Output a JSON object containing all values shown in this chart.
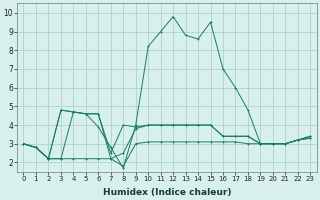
{
  "xlabel": "Humidex (Indice chaleur)",
  "x": [
    0,
    1,
    2,
    3,
    4,
    5,
    6,
    7,
    8,
    9,
    10,
    11,
    12,
    13,
    14,
    15,
    16,
    17,
    18,
    19,
    20,
    21,
    22,
    23
  ],
  "line1": [
    3.0,
    2.8,
    2.2,
    2.2,
    2.2,
    2.2,
    2.2,
    2.2,
    1.8,
    3.0,
    3.1,
    3.1,
    3.1,
    3.1,
    3.1,
    3.1,
    3.1,
    3.1,
    3.0,
    3.0,
    3.0,
    3.0,
    3.2,
    3.3
  ],
  "line2": [
    3.0,
    2.8,
    2.2,
    4.8,
    4.7,
    4.6,
    4.6,
    2.2,
    2.5,
    3.8,
    4.0,
    4.0,
    4.0,
    4.0,
    4.0,
    4.0,
    3.4,
    3.4,
    3.4,
    3.0,
    3.0,
    3.0,
    3.2,
    3.4
  ],
  "line3": [
    3.0,
    2.8,
    2.2,
    4.8,
    4.7,
    4.6,
    3.9,
    2.8,
    1.7,
    4.0,
    8.2,
    9.0,
    9.8,
    8.8,
    8.6,
    9.5,
    7.0,
    6.0,
    4.8,
    3.0,
    3.0,
    3.0,
    3.2,
    3.4
  ],
  "line4": [
    3.0,
    2.8,
    2.2,
    2.2,
    4.7,
    4.6,
    4.6,
    2.5,
    4.0,
    3.9,
    4.0,
    4.0,
    4.0,
    4.0,
    4.0,
    4.0,
    3.4,
    3.4,
    3.4,
    3.0,
    3.0,
    3.0,
    3.2,
    3.3
  ],
  "color": "#1a7a6a",
  "bg_color": "#d8f0eb",
  "grid_color": "#a8ccc8",
  "ylim": [
    1.5,
    10.5
  ],
  "xlim": [
    -0.5,
    23.5
  ],
  "yticks": [
    2,
    3,
    4,
    5,
    6,
    7,
    8,
    9,
    10
  ],
  "xticks": [
    0,
    1,
    2,
    3,
    4,
    5,
    6,
    7,
    8,
    9,
    10,
    11,
    12,
    13,
    14,
    15,
    16,
    17,
    18,
    19,
    20,
    21,
    22,
    23
  ],
  "xtick_labels": [
    "0",
    "1",
    "2",
    "3",
    "4",
    "5",
    "6",
    "7",
    "8",
    "9",
    "10",
    "11",
    "12",
    "13",
    "14",
    "15",
    "16",
    "17",
    "18",
    "19",
    "20",
    "21",
    "22",
    "23"
  ],
  "figsize": [
    3.2,
    2.0
  ],
  "dpi": 100
}
